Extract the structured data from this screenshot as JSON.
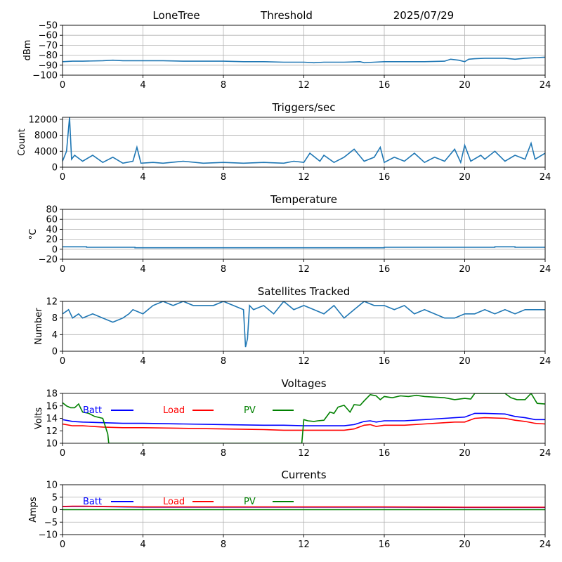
{
  "header": {
    "station": "LoneTree",
    "mode": "Threshold",
    "date": "2025/07/29"
  },
  "chart_data": [
    {
      "id": "signal",
      "type": "line",
      "title": "",
      "ylabel": "dBm",
      "xlim": [
        0,
        24
      ],
      "ylim": [
        -100,
        -50
      ],
      "xticks": [
        0,
        4,
        8,
        12,
        16,
        20,
        24
      ],
      "yticks": [
        -100,
        -90,
        -80,
        -70,
        -60,
        -50
      ],
      "grid": true,
      "series": [
        {
          "color": "#1f77b4",
          "x": [
            0,
            0.5,
            1,
            2,
            2.5,
            3,
            4,
            5,
            6,
            7,
            8,
            9,
            10,
            11,
            12,
            12.5,
            13,
            14,
            14.8,
            15,
            15.5,
            16,
            17,
            18,
            19,
            19.3,
            19.7,
            20,
            20.2,
            20.5,
            21,
            22,
            22.5,
            23,
            24
          ],
          "y": [
            -86.5,
            -86,
            -86,
            -85.5,
            -85,
            -85.5,
            -85.5,
            -85.5,
            -86,
            -86,
            -86,
            -86.5,
            -86.5,
            -87,
            -87,
            -87.5,
            -87,
            -87,
            -86.5,
            -87.5,
            -87,
            -86.5,
            -86.5,
            -86.5,
            -86,
            -84,
            -85,
            -86.5,
            -84,
            -83.5,
            -83,
            -83,
            -84,
            -83,
            -82
          ]
        }
      ]
    },
    {
      "id": "triggers",
      "type": "line",
      "title": "Triggers/sec",
      "ylabel": "Count",
      "xlim": [
        0,
        24
      ],
      "ylim": [
        0,
        12500
      ],
      "xticks": [
        0,
        4,
        8,
        12,
        16,
        20,
        24
      ],
      "yticks": [
        0,
        4000,
        8000,
        12000
      ],
      "grid": true,
      "series": [
        {
          "color": "#1f77b4",
          "x": [
            0,
            0.2,
            0.35,
            0.45,
            0.6,
            1,
            1.5,
            2,
            2.5,
            3,
            3.5,
            3.7,
            3.9,
            4.5,
            5,
            6,
            7,
            8,
            9,
            10,
            11,
            11.5,
            12,
            12.3,
            12.8,
            13,
            13.5,
            14,
            14.5,
            15,
            15.5,
            15.8,
            16,
            16.5,
            17,
            17.5,
            18,
            18.5,
            19,
            19.5,
            19.8,
            20,
            20.3,
            20.8,
            21,
            21.5,
            22,
            22.5,
            23,
            23.3,
            23.5,
            24
          ],
          "y": [
            1500,
            4000,
            12500,
            2000,
            3000,
            1500,
            3000,
            1200,
            2500,
            1000,
            1500,
            5000,
            1000,
            1200,
            1000,
            1500,
            1000,
            1200,
            1000,
            1200,
            1000,
            1500,
            1200,
            3500,
            1500,
            3000,
            1200,
            2500,
            4500,
            1500,
            2500,
            5000,
            1200,
            2500,
            1500,
            3500,
            1200,
            2500,
            1500,
            4500,
            1200,
            5500,
            1500,
            3000,
            2000,
            4000,
            1500,
            3000,
            2000,
            6000,
            2000,
            3500
          ]
        }
      ]
    },
    {
      "id": "temperature",
      "type": "line",
      "title": "Temperature",
      "ylabel": "°C",
      "xlim": [
        0,
        24
      ],
      "ylim": [
        -20,
        80
      ],
      "xticks": [
        0,
        4,
        8,
        12,
        16,
        20,
        24
      ],
      "yticks": [
        -20,
        0,
        20,
        40,
        60,
        80
      ],
      "grid": true,
      "series": [
        {
          "color": "#1f77b4",
          "x": [
            0,
            1.2,
            1.2,
            3.6,
            3.6,
            16,
            16,
            21.5,
            21.5,
            22.5,
            22.5,
            24
          ],
          "y": [
            5,
            5,
            4,
            4,
            3,
            3,
            4,
            4,
            5,
            5,
            4,
            4
          ]
        }
      ]
    },
    {
      "id": "satellites",
      "type": "line",
      "title": "Satellites Tracked",
      "ylabel": "Number",
      "xlim": [
        0,
        24
      ],
      "ylim": [
        0,
        12
      ],
      "xticks": [
        0,
        4,
        8,
        12,
        16,
        20,
        24
      ],
      "yticks": [
        0,
        4,
        8,
        12
      ],
      "grid": true,
      "series": [
        {
          "color": "#1f77b4",
          "x": [
            0,
            0.3,
            0.5,
            0.8,
            1,
            1.5,
            2,
            2.5,
            3,
            3.3,
            3.5,
            4,
            4.5,
            5,
            5.5,
            6,
            6.5,
            7,
            7.5,
            8,
            8.5,
            9,
            9.1,
            9.2,
            9.3,
            9.5,
            10,
            10.5,
            11,
            11.5,
            12,
            12.5,
            13,
            13.5,
            14,
            14.5,
            15,
            15.5,
            16,
            16.5,
            17,
            17.5,
            18,
            18.5,
            19,
            19.5,
            20,
            20.5,
            21,
            21.5,
            22,
            22.5,
            23,
            23.5,
            24
          ],
          "y": [
            9,
            10,
            8,
            9,
            8,
            9,
            8,
            7,
            8,
            9,
            10,
            9,
            11,
            12,
            11,
            12,
            11,
            11,
            11,
            12,
            11,
            10,
            1,
            3,
            11,
            10,
            11,
            9,
            12,
            10,
            11,
            10,
            9,
            11,
            8,
            10,
            12,
            11,
            11,
            10,
            11,
            9,
            10,
            9,
            8,
            8,
            9,
            9,
            10,
            9,
            10,
            9,
            10,
            10,
            10
          ]
        }
      ]
    },
    {
      "id": "voltages",
      "type": "line",
      "title": "Voltages",
      "ylabel": "Volts",
      "xlim": [
        0,
        24
      ],
      "ylim": [
        10,
        18
      ],
      "xticks": [
        0,
        4,
        8,
        12,
        16,
        20,
        24
      ],
      "yticks": [
        10,
        12,
        14,
        16,
        18
      ],
      "grid": false,
      "legend": [
        {
          "label": "Batt",
          "color": "#0000ff"
        },
        {
          "label": "Load",
          "color": "#ff0000"
        },
        {
          "label": "PV",
          "color": "#008000"
        }
      ],
      "series": [
        {
          "name": "Batt",
          "color": "#0000ff",
          "x": [
            0,
            0.5,
            1,
            2,
            3,
            4,
            6,
            8,
            10,
            11,
            12,
            14,
            14.5,
            15,
            15.3,
            15.6,
            16,
            17,
            18,
            19,
            19.5,
            20,
            20.5,
            21,
            22,
            22.5,
            23,
            23.5,
            24
          ],
          "y": [
            13.8,
            13.5,
            13.4,
            13.3,
            13.2,
            13.2,
            13.1,
            13.0,
            12.9,
            12.9,
            12.8,
            12.8,
            13.0,
            13.5,
            13.6,
            13.4,
            13.6,
            13.6,
            13.8,
            14.0,
            14.1,
            14.2,
            14.8,
            14.8,
            14.7,
            14.3,
            14.1,
            13.8,
            13.8
          ]
        },
        {
          "name": "Load",
          "color": "#ff0000",
          "x": [
            0,
            0.5,
            1,
            2,
            3,
            4,
            6,
            8,
            10,
            11,
            12,
            14,
            14.5,
            15,
            15.3,
            15.6,
            16,
            17,
            18,
            19,
            19.5,
            20,
            20.5,
            21,
            22,
            22.5,
            23,
            23.5,
            24
          ],
          "y": [
            13.1,
            12.8,
            12.8,
            12.6,
            12.5,
            12.5,
            12.4,
            12.3,
            12.2,
            12.1,
            12.1,
            12.1,
            12.3,
            12.9,
            13.0,
            12.7,
            12.9,
            12.9,
            13.1,
            13.3,
            13.4,
            13.4,
            14.0,
            14.1,
            14.0,
            13.7,
            13.5,
            13.2,
            13.1
          ]
        },
        {
          "name": "PV",
          "color": "#008000",
          "x": [
            0,
            0.2,
            0.4,
            0.6,
            0.8,
            1.0,
            1.3,
            1.6,
            2.0,
            2.1,
            2.25,
            2.3,
            11.9,
            12.0,
            12.2,
            12.5,
            12.7,
            13.0,
            13.3,
            13.5,
            13.7,
            14.0,
            14.3,
            14.5,
            14.8,
            15.0,
            15.3,
            15.6,
            15.8,
            16.0,
            16.4,
            16.8,
            17.2,
            17.6,
            18.0,
            18.5,
            19.0,
            19.5,
            20.0,
            20.3,
            20.5,
            22.0,
            22.3,
            22.6,
            23.0,
            23.3,
            23.6,
            24.0
          ],
          "y": [
            16.5,
            16.0,
            15.7,
            15.7,
            16.3,
            15.0,
            14.8,
            14.3,
            14.0,
            13.0,
            11.5,
            10.0,
            10.0,
            13.8,
            13.6,
            13.5,
            13.6,
            13.7,
            15.0,
            14.8,
            15.8,
            16.1,
            15.0,
            16.2,
            16.1,
            16.8,
            17.8,
            17.6,
            17.0,
            17.5,
            17.3,
            17.6,
            17.5,
            17.7,
            17.5,
            17.4,
            17.3,
            17.0,
            17.2,
            17.1,
            18.0,
            18.0,
            17.3,
            17.0,
            17.0,
            18.0,
            16.4,
            16.3
          ]
        }
      ]
    },
    {
      "id": "currents",
      "type": "line",
      "title": "Currents",
      "ylabel": "Amps",
      "xlim": [
        0,
        24
      ],
      "ylim": [
        -10,
        10
      ],
      "xticks": [
        0,
        4,
        8,
        12,
        16,
        20,
        24
      ],
      "yticks": [
        -10,
        -5,
        0,
        5,
        10
      ],
      "grid": true,
      "legend": [
        {
          "label": "Batt",
          "color": "#0000ff"
        },
        {
          "label": "Load",
          "color": "#ff0000"
        },
        {
          "label": "PV",
          "color": "#008000"
        }
      ],
      "series": [
        {
          "name": "Batt",
          "color": "#0000ff",
          "x": [
            0,
            0.5,
            1,
            2,
            3,
            4,
            8,
            12,
            16,
            20,
            24
          ],
          "y": [
            1.2,
            1.3,
            1.3,
            1.2,
            1.1,
            1.0,
            1.0,
            1.0,
            1.0,
            0.9,
            0.9
          ]
        },
        {
          "name": "Load",
          "color": "#ff0000",
          "x": [
            0,
            0.5,
            1,
            2,
            3,
            4,
            8,
            12,
            16,
            20,
            24
          ],
          "y": [
            1.3,
            1.4,
            1.4,
            1.3,
            1.2,
            1.1,
            1.1,
            1.1,
            1.1,
            1.0,
            1.0
          ]
        },
        {
          "name": "PV",
          "color": "#008000",
          "x": [
            0,
            4,
            8,
            12,
            16,
            20,
            24
          ],
          "y": [
            0,
            0,
            0,
            0,
            0,
            0,
            0
          ]
        }
      ]
    }
  ]
}
